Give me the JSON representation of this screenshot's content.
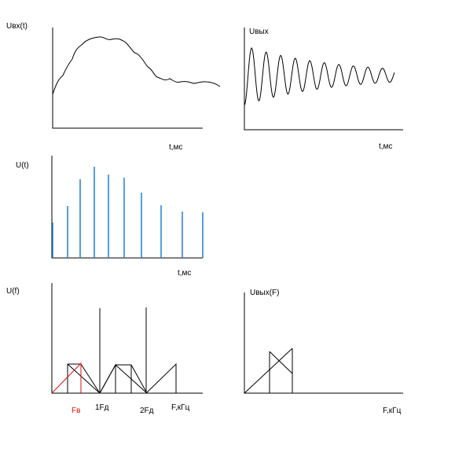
{
  "panels": [
    {
      "y_label": "Uвх(t)",
      "x_label": "t,мс"
    },
    {
      "y_label": "Uвых",
      "x_label": "t,мс"
    },
    {
      "y_label": "U(t)",
      "x_label": "t,мс"
    },
    {
      "y_label": "U(f)",
      "x_label": "F,кГц",
      "marks": [
        "Fв",
        "1Fд",
        "2Fд"
      ]
    },
    {
      "y_label": "Uвых(F)",
      "x_label": "F,кГц"
    }
  ]
}
